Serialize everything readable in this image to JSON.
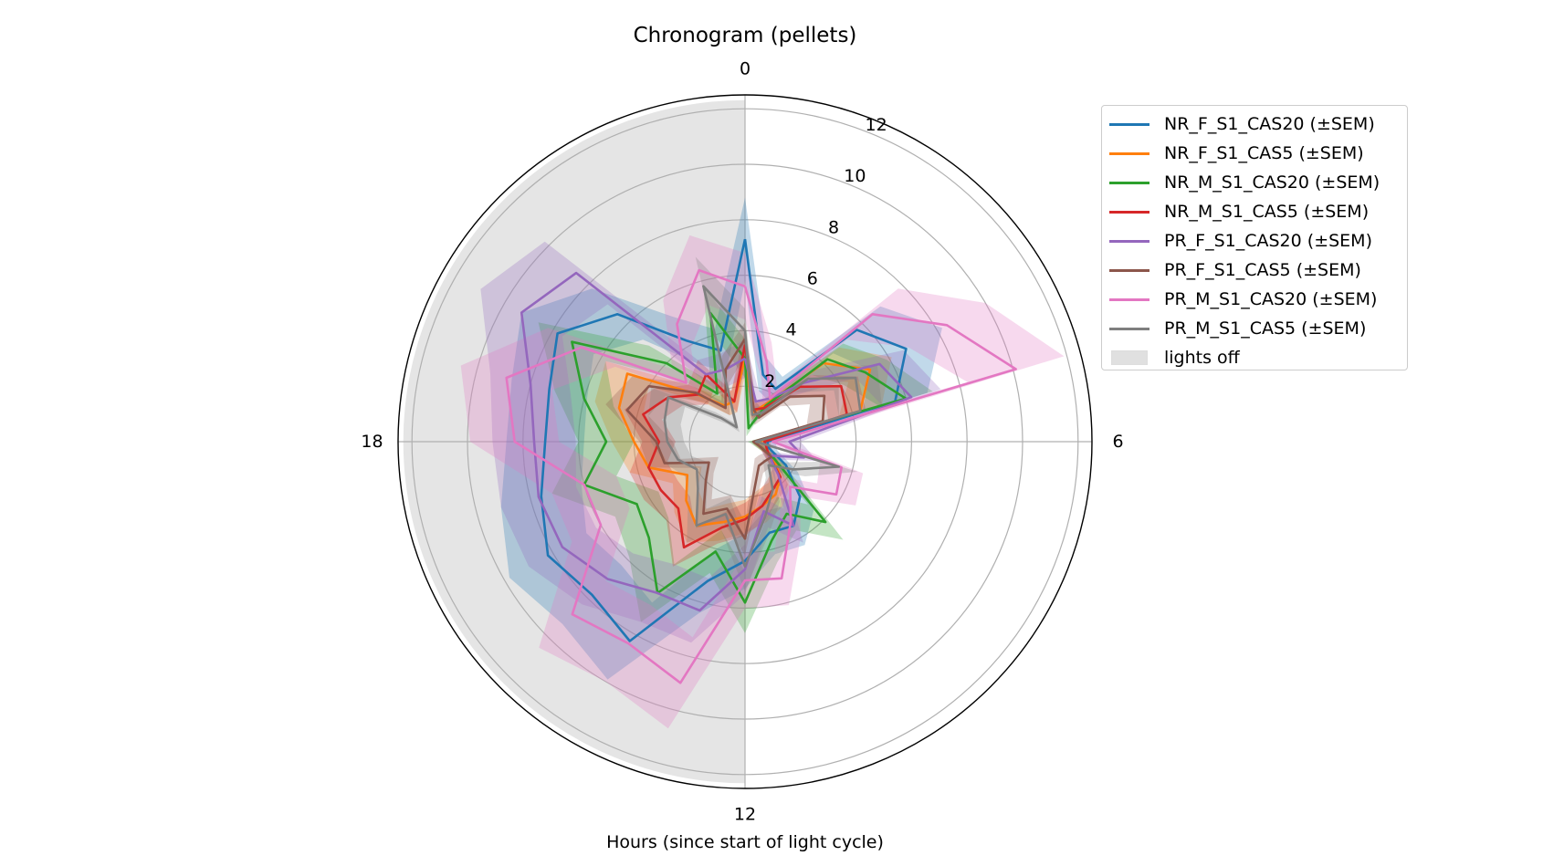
{
  "chart_data": {
    "type": "polar-line",
    "title": "Chronogram (pellets)",
    "xlabel": "Hours (since start of light cycle)",
    "ylabel": "",
    "theta_ticks": [
      "0",
      "6",
      "12",
      "18"
    ],
    "r_ticks": [
      "2",
      "4",
      "6",
      "8",
      "10",
      "12"
    ],
    "rlim": [
      0,
      12.5
    ],
    "hours": [
      0,
      1,
      2,
      3,
      4,
      5,
      6,
      7,
      8,
      9,
      10,
      11,
      12,
      13,
      14,
      15,
      16,
      17,
      18,
      19,
      20,
      21,
      22,
      23
    ],
    "lights_off": {
      "label": "lights off",
      "start_hour": 12,
      "end_hour": 24,
      "color": "#d3d3d3"
    },
    "grid": true,
    "legend_position": "upper-right-outside",
    "series": [
      {
        "name": "NR_F_S1_CAS20 (±SEM)",
        "color": "#1f77b4",
        "values": [
          7.3,
          2.5,
          2.2,
          5.7,
          6.7,
          5.6,
          0.8,
          0.9,
          1.7,
          2.8,
          3.5,
          3.4,
          4.3,
          5.2,
          8.3,
          7.8,
          8.2,
          7.6,
          7.2,
          7.3,
          7.8,
          6.5,
          4.2,
          3.4
        ],
        "sem": [
          1.5,
          0.6,
          0.5,
          1.2,
          1.5,
          1.2,
          0.3,
          0.3,
          0.5,
          0.7,
          0.8,
          0.8,
          1.0,
          1.2,
          1.6,
          1.5,
          1.6,
          1.5,
          1.4,
          1.4,
          1.5,
          1.3,
          1.0,
          0.8
        ]
      },
      {
        "name": "NR_F_S1_CAS5 (±SEM)",
        "color": "#ff7f0e",
        "values": [
          3.0,
          1.1,
          1.6,
          4.0,
          5.2,
          4.3,
          0.5,
          0.5,
          1.2,
          1.8,
          2.2,
          2.4,
          2.7,
          3.0,
          3.5,
          3.0,
          2.4,
          3.6,
          4.0,
          4.7,
          4.9,
          2.4,
          1.5,
          1.5
        ],
        "sem": [
          0.6,
          0.3,
          0.4,
          0.8,
          0.9,
          0.8,
          0.2,
          0.2,
          0.4,
          0.5,
          0.5,
          0.6,
          0.6,
          0.7,
          0.7,
          0.6,
          0.6,
          0.7,
          0.8,
          0.9,
          0.9,
          0.5,
          0.4,
          0.4
        ]
      },
      {
        "name": "NR_M_S1_CAS20 (±SEM)",
        "color": "#2ca02c",
        "values": [
          3.0,
          0.5,
          1.5,
          4.2,
          5.0,
          6.0,
          0.3,
          0.5,
          1.2,
          4.1,
          3.0,
          3.7,
          5.8,
          4.1,
          6.3,
          4.9,
          4.5,
          6.0,
          5.0,
          6.0,
          7.2,
          4.0,
          2.0,
          4.8
        ],
        "sem": [
          0.7,
          0.3,
          0.5,
          0.8,
          0.9,
          1.0,
          0.2,
          0.3,
          0.4,
          0.9,
          0.7,
          0.8,
          1.1,
          0.8,
          1.2,
          1.0,
          0.9,
          1.2,
          1.0,
          1.1,
          1.4,
          0.9,
          0.5,
          1.0
        ]
      },
      {
        "name": "NR_M_S1_CAS5 (±SEM)",
        "color": "#d62728",
        "values": [
          3.5,
          1.2,
          1.4,
          2.8,
          4.0,
          3.8,
          0.7,
          0.8,
          1.0,
          1.8,
          2.0,
          2.4,
          2.8,
          3.2,
          4.4,
          3.4,
          3.5,
          3.6,
          3.1,
          3.8,
          3.2,
          2.4,
          2.8,
          1.5
        ],
        "sem": [
          0.6,
          0.3,
          0.3,
          0.6,
          0.7,
          0.7,
          0.2,
          0.2,
          0.3,
          0.4,
          0.4,
          0.5,
          0.6,
          0.6,
          0.8,
          0.6,
          0.7,
          0.7,
          0.6,
          0.7,
          0.6,
          0.5,
          0.6,
          0.4
        ]
      },
      {
        "name": "PR_F_S1_CAS20 (±SEM)",
        "color": "#9467bd",
        "values": [
          3.0,
          1.5,
          1.8,
          3.0,
          5.6,
          6.2,
          1.6,
          2.2,
          1.0,
          1.7,
          3.5,
          2.6,
          4.6,
          6.3,
          6.3,
          7.0,
          7.6,
          7.7,
          7.6,
          8.0,
          9.3,
          8.6,
          2.8,
          2.7
        ],
        "sem": [
          0.7,
          0.4,
          0.5,
          0.7,
          1.0,
          1.1,
          0.4,
          0.5,
          0.3,
          0.4,
          0.7,
          0.6,
          0.9,
          1.2,
          1.2,
          1.3,
          1.4,
          1.4,
          1.5,
          1.5,
          1.7,
          1.6,
          0.6,
          0.6
        ]
      },
      {
        "name": "PR_F_S1_CAS5 (±SEM)",
        "color": "#8c564b",
        "values": [
          3.7,
          1.2,
          1.0,
          2.3,
          3.3,
          2.9,
          0.3,
          0.5,
          1.1,
          1.0,
          1.0,
          1.5,
          3.5,
          2.5,
          3.0,
          2.0,
          1.5,
          3.0,
          3.2,
          4.4,
          4.0,
          2.5,
          1.4,
          2.7
        ],
        "sem": [
          0.6,
          0.3,
          0.3,
          0.5,
          0.6,
          0.6,
          0.1,
          0.2,
          0.3,
          0.3,
          0.3,
          0.4,
          0.6,
          0.5,
          0.6,
          0.4,
          0.4,
          0.6,
          0.6,
          0.8,
          0.7,
          0.5,
          0.3,
          0.5
        ]
      },
      {
        "name": "PR_M_S1_CAS20 (±SEM)",
        "color": "#e377c2",
        "values": [
          5.6,
          3.0,
          1.8,
          6.5,
          8.4,
          10.1,
          1.0,
          3.6,
          3.8,
          2.3,
          3.3,
          5.1,
          5.0,
          9.0,
          8.4,
          8.8,
          6.0,
          6.0,
          8.3,
          8.9,
          6.8,
          3.0,
          4.9,
          6.4
        ],
        "sem": [
          1.2,
          0.7,
          0.5,
          1.3,
          1.6,
          1.8,
          0.4,
          0.8,
          0.8,
          0.5,
          0.7,
          1.0,
          1.0,
          1.7,
          1.6,
          1.7,
          1.2,
          1.2,
          1.6,
          1.7,
          1.4,
          0.7,
          1.0,
          1.3
        ]
      },
      {
        "name": "PR_M_S1_CAS5 (±SEM)",
        "color": "#7f7f7f",
        "values": [
          4.0,
          1.0,
          1.2,
          3.2,
          4.6,
          4.3,
          0.4,
          3.5,
          2.0,
          1.2,
          2.0,
          2.8,
          4.5,
          2.7,
          3.5,
          2.4,
          2.0,
          2.5,
          2.8,
          3.0,
          3.2,
          1.2,
          0.6,
          5.8
        ],
        "sem": [
          0.8,
          0.3,
          0.3,
          0.7,
          0.9,
          0.8,
          0.1,
          0.7,
          0.5,
          0.3,
          0.5,
          0.6,
          0.9,
          0.6,
          0.7,
          0.5,
          0.5,
          0.5,
          0.6,
          0.6,
          0.7,
          0.3,
          0.2,
          1.1
        ]
      }
    ]
  }
}
